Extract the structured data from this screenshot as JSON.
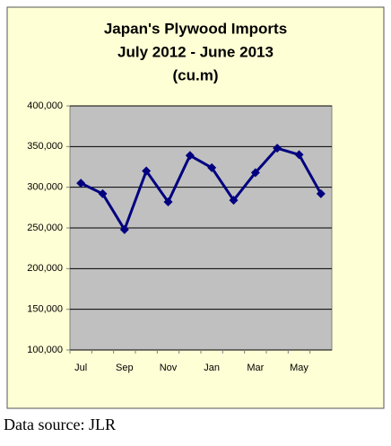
{
  "chart_data": {
    "type": "line",
    "title": [
      "Japan's Plywood Imports",
      "July 2012  - June 2013",
      "(cu.m)"
    ],
    "categories": [
      "Jul",
      null,
      "Sep",
      null,
      "Nov",
      null,
      "Jan",
      null,
      "Mar",
      null,
      "May",
      null
    ],
    "values": [
      305000,
      292000,
      248000,
      320000,
      282000,
      339000,
      324000,
      284000,
      318000,
      348000,
      340000,
      292000
    ],
    "color": "#000080",
    "ylim": [
      100000,
      400000
    ],
    "yticks": [
      {
        "value": 100000,
        "label": "100,000"
      },
      {
        "value": 150000,
        "label": "150,000"
      },
      {
        "value": 200000,
        "label": "200,000"
      },
      {
        "value": 250000,
        "label": "250,000"
      },
      {
        "value": 300000,
        "label": "300,000"
      },
      {
        "value": 350000,
        "label": "350,000"
      },
      {
        "value": 400000,
        "label": "400,000"
      }
    ],
    "grid": true
  },
  "source": "Data source: JLR"
}
